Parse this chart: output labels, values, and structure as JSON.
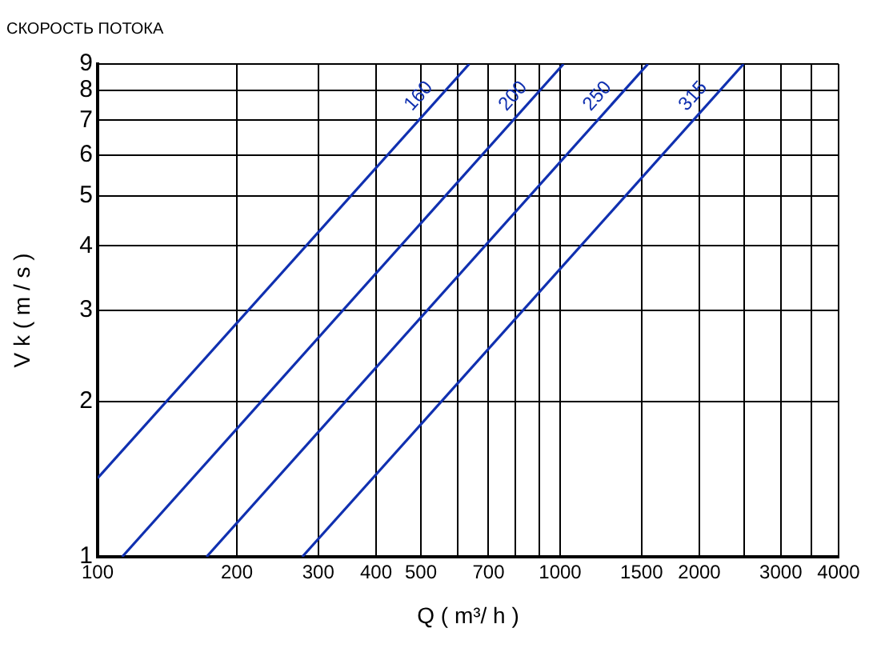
{
  "chart_data": {
    "type": "line",
    "title": "СКОРОСТЬ ПОТОКА",
    "xlabel": "Q ( m³/ h )",
    "ylabel": "V k ( m / s )",
    "log": "xy",
    "grid": true,
    "legend": false,
    "marker": "none",
    "line_style": "solid",
    "xlim": [
      100,
      4000
    ],
    "ylim": [
      1,
      9
    ],
    "xticks": [
      100,
      200,
      300,
      400,
      500,
      {
        "value": 600,
        "label": null
      },
      700,
      {
        "value": 800,
        "label": null
      },
      {
        "value": 900,
        "label": null
      },
      1000,
      1500,
      2000,
      {
        "value": 2500,
        "label": null
      },
      3000,
      {
        "value": 3500,
        "label": null
      },
      4000
    ],
    "yticks": [
      1,
      2,
      3,
      4,
      5,
      6,
      7,
      8,
      9
    ],
    "series": [
      {
        "name": "160",
        "color": "#1030b0",
        "x": [
          100,
          636
        ],
        "values": [
          1.42,
          9
        ]
      },
      {
        "name": "200",
        "color": "#1030b0",
        "x": [
          113,
          1017
        ],
        "values": [
          1,
          9
        ]
      },
      {
        "name": "250",
        "color": "#1030b0",
        "x": [
          172,
          1548
        ],
        "values": [
          1,
          9
        ]
      },
      {
        "name": "315",
        "color": "#1030b0",
        "x": [
          277,
          2493
        ],
        "values": [
          1,
          9
        ]
      }
    ]
  }
}
